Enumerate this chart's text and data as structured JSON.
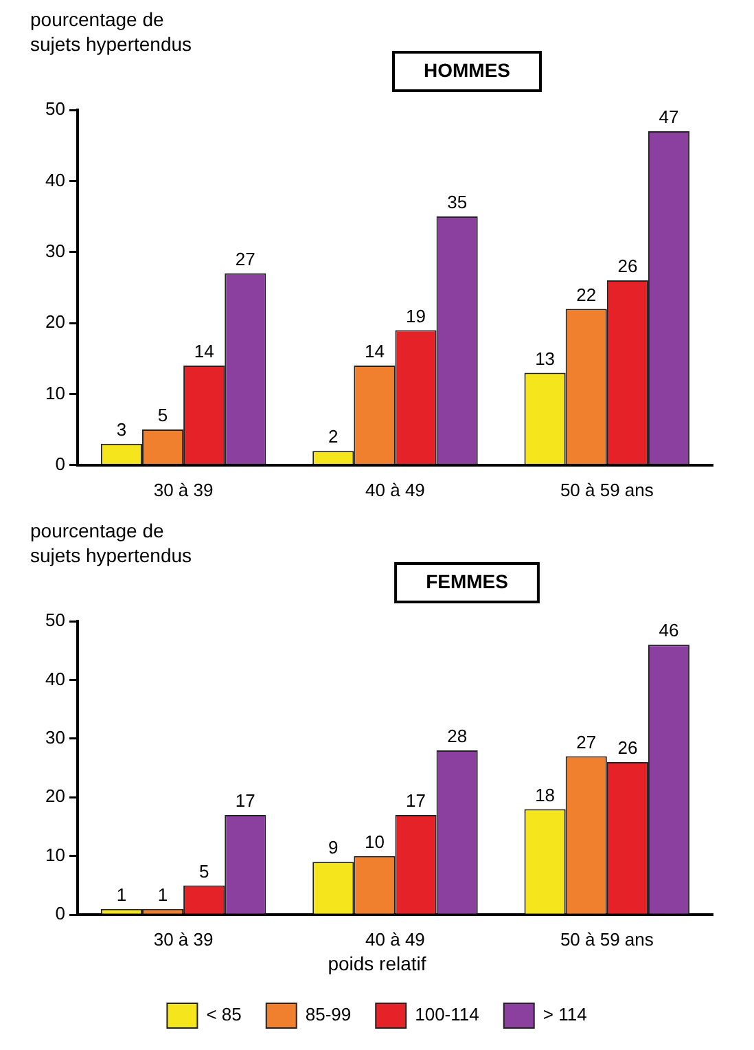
{
  "chart_data": [
    {
      "type": "bar",
      "title": "HOMMES",
      "ylabel": "pourcentage de\nsujets hypertendus",
      "categories": [
        "30 à 39",
        "40 à 49",
        "50 à 59 ans"
      ],
      "series": [
        {
          "color": "#f5e51c",
          "values": [
            3,
            2,
            13
          ]
        },
        {
          "color": "#f0802e",
          "values": [
            5,
            14,
            22
          ]
        },
        {
          "color": "#e52228",
          "values": [
            14,
            19,
            26
          ]
        },
        {
          "color": "#8b3f9e",
          "values": [
            27,
            35,
            47
          ]
        }
      ],
      "ylim": [
        0,
        50
      ],
      "yticks": [
        0,
        10,
        20,
        30,
        40,
        50
      ],
      "data_labels": true,
      "legend": false
    },
    {
      "type": "bar",
      "title": "FEMMES",
      "ylabel": "pourcentage de\nsujets hypertendus",
      "categories": [
        "30 à 39",
        "40 à 49",
        "50 à 59 ans"
      ],
      "series": [
        {
          "name": "< 85",
          "color": "#f5e51c",
          "values": [
            1,
            9,
            18
          ]
        },
        {
          "name": "85-99",
          "color": "#f0802e",
          "values": [
            1,
            10,
            27
          ]
        },
        {
          "name": "100-114",
          "color": "#e52228",
          "values": [
            5,
            17,
            26
          ]
        },
        {
          "name": "> 114",
          "color": "#8b3f9e",
          "values": [
            17,
            28,
            46
          ]
        }
      ],
      "ylim": [
        0,
        50
      ],
      "yticks": [
        0,
        10,
        20,
        30,
        40,
        50
      ],
      "data_labels": true,
      "legend": "bottom",
      "legend_title": "poids relatif"
    }
  ]
}
